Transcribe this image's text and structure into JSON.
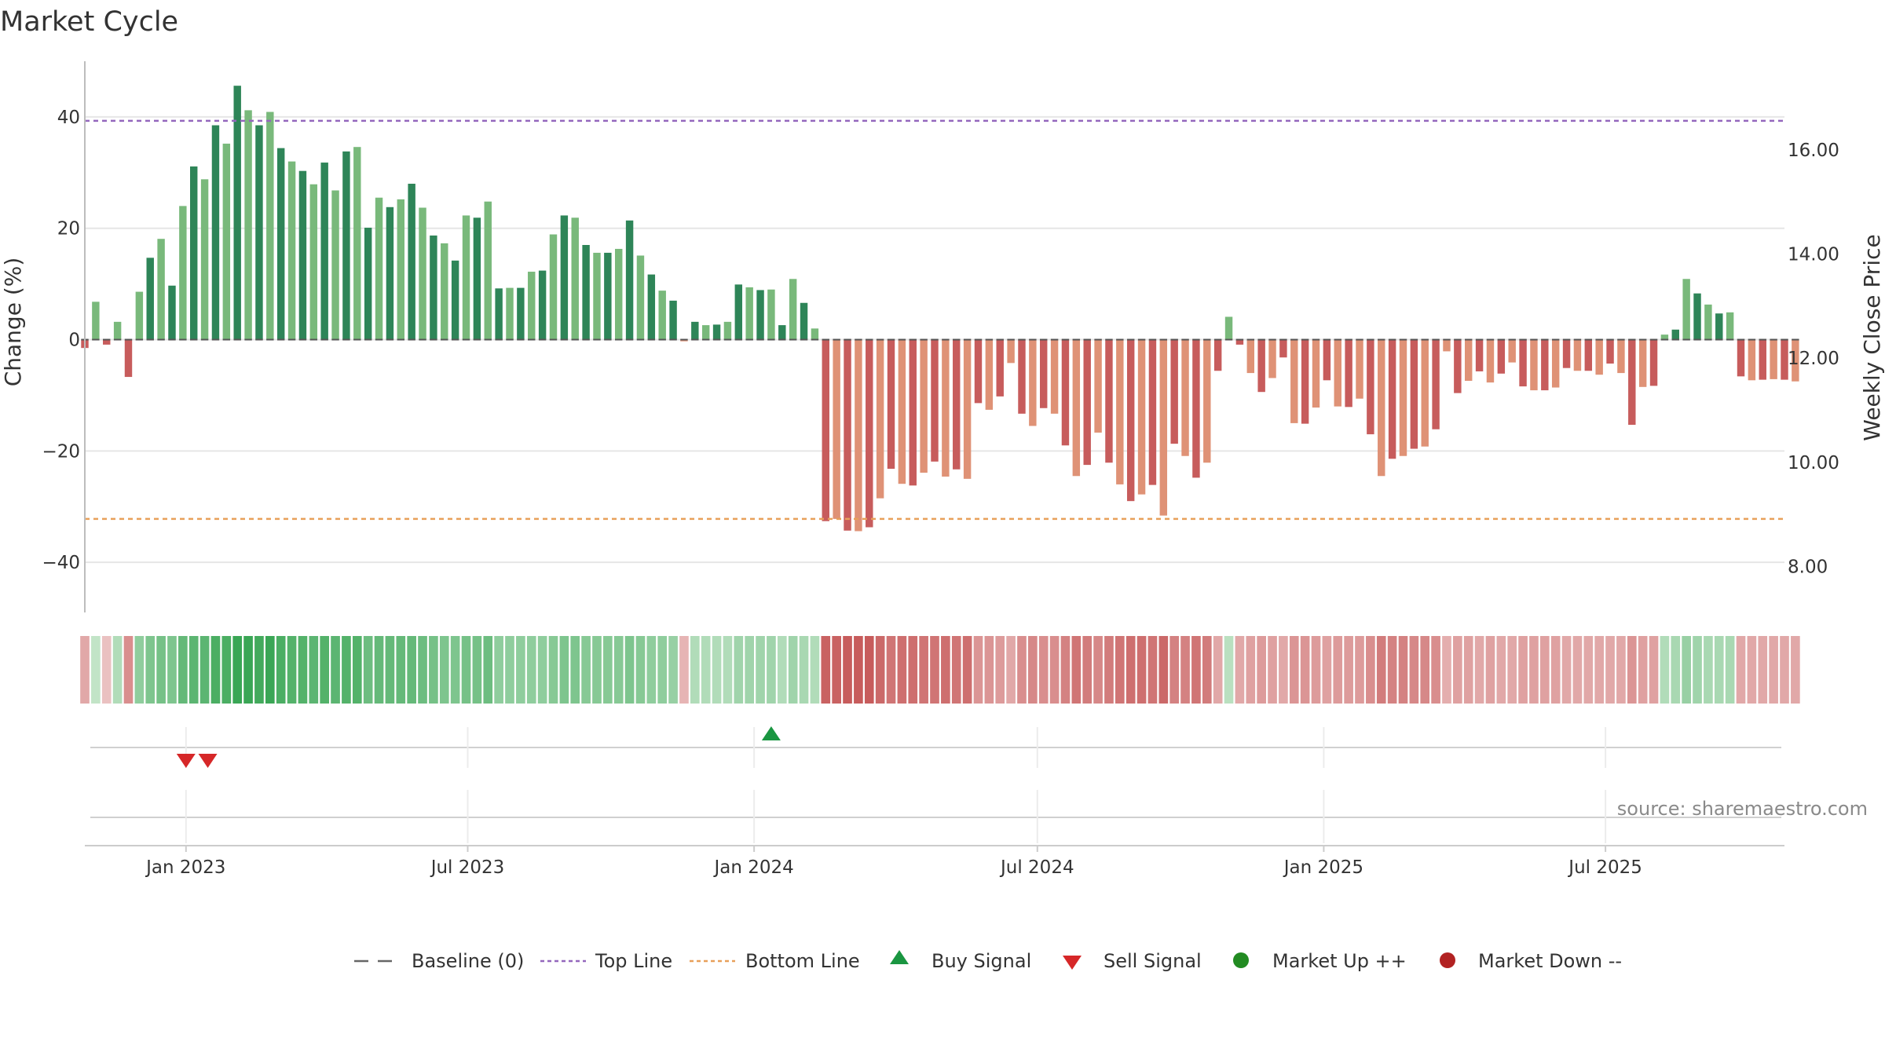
{
  "chart_data": {
    "type": "bar",
    "title": "Market Cycle",
    "ylabel": "Change (%)",
    "y2label": "Weekly Close Price",
    "source": "source: sharemaestro.com",
    "ylim": [
      -49,
      50
    ],
    "y2lim": [
      7.12,
      17.7
    ],
    "yticks": [
      {
        "v": 40,
        "label": "40"
      },
      {
        "v": 20,
        "label": "20"
      },
      {
        "v": 0,
        "label": "0"
      },
      {
        "v": -20,
        "label": "−20"
      },
      {
        "v": -40,
        "label": "−40"
      }
    ],
    "y2ticks": [
      {
        "v": 16,
        "label": "16.00"
      },
      {
        "v": 14,
        "label": "14.00"
      },
      {
        "v": 12,
        "label": "12.00"
      },
      {
        "v": 10,
        "label": "10.00"
      },
      {
        "v": 8,
        "label": "8.00"
      }
    ],
    "x_start": "2022-10-28",
    "x_end": "2025-10-24",
    "xticks": [
      {
        "date": "2023-01-01",
        "label": "Jan 2023"
      },
      {
        "date": "2023-07-01",
        "label": "Jul 2023"
      },
      {
        "date": "2024-01-01",
        "label": "Jan 2024"
      },
      {
        "date": "2024-07-01",
        "label": "Jul 2024"
      },
      {
        "date": "2025-01-01",
        "label": "Jan 2025"
      },
      {
        "date": "2025-07-01",
        "label": "Jul 2025"
      }
    ],
    "top_line": 39.3,
    "bottom_line": -32.2,
    "first_week": "2022-10-28",
    "values": [
      -1.5,
      6.8,
      -0.9,
      3.2,
      -6.7,
      8.6,
      14.7,
      18.1,
      9.7,
      24.0,
      31.1,
      28.8,
      38.5,
      35.2,
      45.6,
      41.2,
      38.5,
      40.9,
      34.4,
      32.0,
      30.3,
      27.9,
      31.8,
      26.8,
      33.8,
      34.6,
      20.1,
      25.5,
      23.8,
      25.2,
      28.0,
      23.7,
      18.7,
      17.3,
      14.2,
      22.3,
      21.9,
      24.8,
      9.2,
      9.3,
      9.3,
      12.2,
      12.4,
      18.9,
      22.3,
      21.9,
      17.0,
      15.6,
      15.6,
      16.3,
      21.4,
      15.1,
      11.7,
      8.8,
      7.0,
      -0.3,
      3.2,
      2.6,
      2.7,
      3.2,
      9.9,
      9.4,
      8.9,
      9.0,
      2.6,
      10.9,
      6.6,
      2.0,
      -32.6,
      -32.2,
      -34.3,
      -34.4,
      -33.7,
      -28.5,
      -23.2,
      -25.9,
      -26.2,
      -23.9,
      -21.9,
      -24.6,
      -23.3,
      -25.0,
      -11.4,
      -12.6,
      -10.2,
      -4.2,
      -13.3,
      -15.5,
      -12.3,
      -13.3,
      -19.0,
      -24.5,
      -22.5,
      -16.7,
      -22.1,
      -26.0,
      -29.0,
      -27.8,
      -26.1,
      -31.6,
      -18.7,
      -20.9,
      -24.8,
      -22.1,
      -5.6,
      4.1,
      -0.9,
      -6.0,
      -9.4,
      -6.9,
      -3.2,
      -15.0,
      -15.1,
      -12.2,
      -7.3,
      -12.0,
      -12.1,
      -10.6,
      -17.0,
      -24.5,
      -21.4,
      -20.9,
      -19.6,
      -19.2,
      -16.1,
      -2.1,
      -9.6,
      -7.4,
      -5.7,
      -7.7,
      -6.1,
      -4.1,
      -8.4,
      -9.1,
      -9.1,
      -8.6,
      -5.1,
      -5.6,
      -5.6,
      -6.3,
      -4.3,
      -6.0,
      -15.3,
      -8.5,
      -8.3,
      0.9,
      1.8,
      10.9,
      8.3,
      6.3,
      4.7,
      4.9,
      -6.6,
      -7.3,
      -7.2,
      -7.1,
      -7.2,
      -7.5
    ],
    "strength": [
      0.4,
      0.2,
      0.2,
      0.3,
      0.6,
      0.5,
      0.6,
      0.65,
      0.6,
      0.75,
      0.8,
      0.8,
      0.9,
      0.9,
      1.0,
      1.0,
      0.95,
      1.0,
      0.9,
      0.85,
      0.85,
      0.8,
      0.85,
      0.8,
      0.85,
      0.85,
      0.7,
      0.75,
      0.75,
      0.75,
      0.75,
      0.7,
      0.65,
      0.6,
      0.6,
      0.65,
      0.65,
      0.7,
      0.5,
      0.5,
      0.5,
      0.5,
      0.5,
      0.55,
      0.6,
      0.6,
      0.55,
      0.55,
      0.55,
      0.55,
      0.6,
      0.55,
      0.5,
      0.5,
      0.45,
      0.3,
      0.3,
      0.3,
      0.3,
      0.3,
      0.4,
      0.4,
      0.4,
      0.4,
      0.3,
      0.4,
      0.35,
      0.3,
      0.95,
      0.95,
      1.0,
      1.0,
      1.0,
      0.9,
      0.8,
      0.85,
      0.85,
      0.8,
      0.8,
      0.85,
      0.8,
      0.85,
      0.55,
      0.55,
      0.5,
      0.4,
      0.6,
      0.65,
      0.6,
      0.6,
      0.7,
      0.8,
      0.75,
      0.65,
      0.75,
      0.8,
      0.85,
      0.85,
      0.8,
      0.9,
      0.7,
      0.7,
      0.8,
      0.75,
      0.4,
      0.25,
      0.4,
      0.45,
      0.5,
      0.45,
      0.4,
      0.55,
      0.55,
      0.5,
      0.45,
      0.5,
      0.5,
      0.5,
      0.6,
      0.75,
      0.7,
      0.7,
      0.65,
      0.65,
      0.6,
      0.35,
      0.45,
      0.45,
      0.4,
      0.45,
      0.4,
      0.4,
      0.45,
      0.45,
      0.45,
      0.45,
      0.4,
      0.4,
      0.4,
      0.4,
      0.4,
      0.4,
      0.55,
      0.45,
      0.45,
      0.3,
      0.35,
      0.45,
      0.4,
      0.35,
      0.35,
      0.35,
      0.4,
      0.4,
      0.4,
      0.4,
      0.4,
      0.4
    ],
    "buy_signals": [
      "2024-01-12"
    ],
    "sell_signals": [
      "2023-01-01",
      "2023-01-15"
    ],
    "legend": [
      {
        "kind": "baseline",
        "label": "Baseline (0)"
      },
      {
        "kind": "top",
        "label": "Top Line"
      },
      {
        "kind": "bottom",
        "label": "Bottom Line"
      },
      {
        "kind": "buy",
        "label": "Buy Signal"
      },
      {
        "kind": "sell",
        "label": "Sell Signal"
      },
      {
        "kind": "up",
        "label": "Market Up ++"
      },
      {
        "kind": "down",
        "label": "Market Down --"
      }
    ],
    "colors": {
      "up_dark": "#2e8558",
      "up_light": "#86c281",
      "down_dark": "#c75c5c",
      "down_light": "#e39b7b",
      "top_line": "#9467bd",
      "bottom_line": "#e8a05a",
      "buy": "#1a9641",
      "sell": "#d62728",
      "market_up": "#228b22",
      "market_down": "#b22222",
      "grid": "#e6e6e6"
    }
  }
}
